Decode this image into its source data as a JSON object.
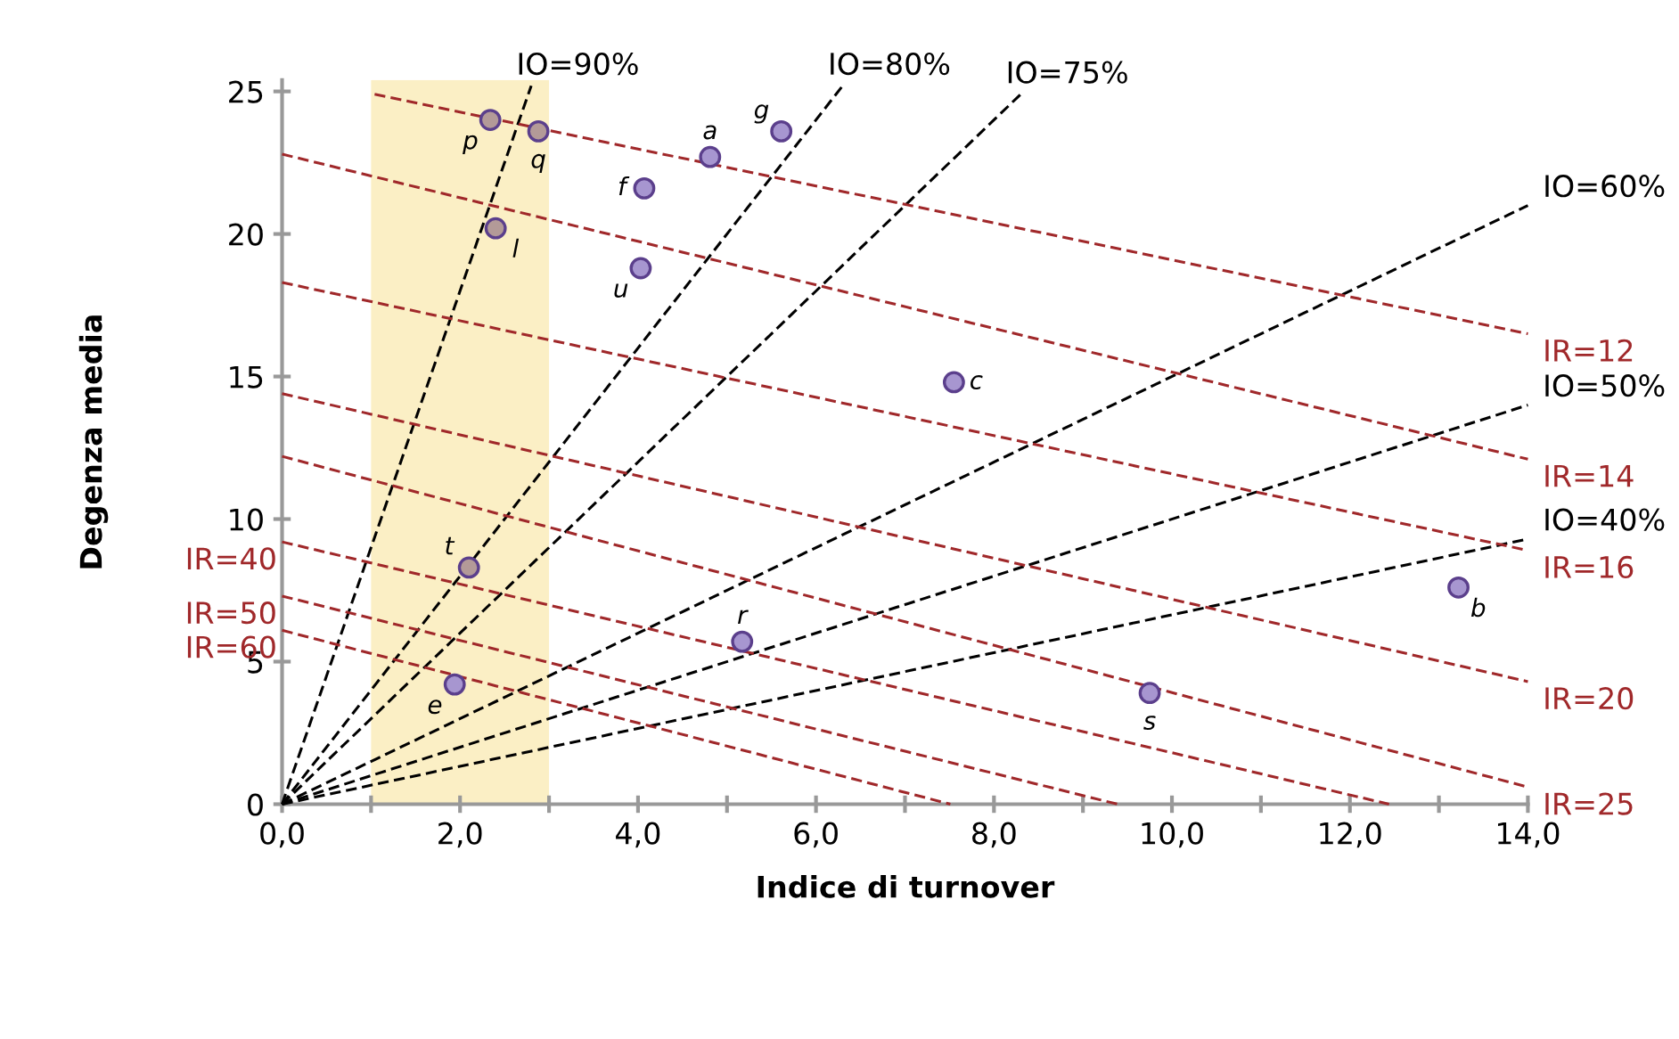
{
  "chart_data": {
    "type": "scatter",
    "xlabel": "Indice di turnover",
    "ylabel": "Degenza media",
    "xlim": [
      0,
      14
    ],
    "ylim": [
      0,
      25.4
    ],
    "xticks": [
      {
        "value": 0,
        "label": "0,0"
      },
      {
        "value": 1,
        "label": null
      },
      {
        "value": 2,
        "label": "2,0"
      },
      {
        "value": 3,
        "label": null
      },
      {
        "value": 4,
        "label": "4,0"
      },
      {
        "value": 5,
        "label": null
      },
      {
        "value": 6,
        "label": "6,0"
      },
      {
        "value": 7,
        "label": null
      },
      {
        "value": 8,
        "label": "8,0"
      },
      {
        "value": 9,
        "label": null
      },
      {
        "value": 10,
        "label": "10,0"
      },
      {
        "value": 11,
        "label": null
      },
      {
        "value": 12,
        "label": "12,0"
      },
      {
        "value": 13,
        "label": null
      },
      {
        "value": 14,
        "label": "14,0"
      }
    ],
    "yticks": [
      0,
      5,
      10,
      15,
      20,
      25
    ],
    "grid": false,
    "legend": false,
    "marker": "circle",
    "line_style": "dashed",
    "bands": [
      {
        "axis": "x",
        "from": 1,
        "to": 3,
        "color": "#fbefc5"
      }
    ],
    "series": [
      {
        "type": "scatter",
        "x": [
          2.34,
          2.88,
          2.4,
          4.07,
          4.81,
          5.61,
          4.03,
          7.55,
          5.17,
          1.94,
          9.75,
          13.22,
          2.1
        ],
        "values": [
          24.0,
          23.6,
          20.2,
          21.6,
          22.7,
          23.6,
          18.8,
          14.8,
          5.7,
          4.2,
          3.9,
          7.6,
          8.3
        ],
        "colors": [
          "#b39a98",
          "#b39a98",
          "#b39a98",
          "#a796d0",
          "#a796d0",
          "#a796d0",
          "#a796d0",
          "#a796d0",
          "#a796d0",
          "#a796d0",
          "#a796d0",
          "#a796d0",
          "#b39a98"
        ]
      },
      {
        "type": "line",
        "name": "IO=90%",
        "color": "#000000",
        "x": [
          0,
          2.8
        ],
        "values": [
          0,
          25.2
        ],
        "marker": "none"
      },
      {
        "type": "line",
        "name": "IO=80%",
        "color": "#000000",
        "x": [
          0,
          6.3
        ],
        "values": [
          0,
          25.2
        ],
        "marker": "none"
      },
      {
        "type": "line",
        "name": "IO=75%",
        "color": "#000000",
        "x": [
          0,
          8.3
        ],
        "values": [
          0,
          24.9
        ],
        "marker": "none"
      },
      {
        "type": "line",
        "name": "IO=60%",
        "color": "#000000",
        "x": [
          0,
          14
        ],
        "values": [
          0,
          21.0
        ],
        "marker": "none"
      },
      {
        "type": "line",
        "name": "IO=50%",
        "color": "#000000",
        "x": [
          0,
          14
        ],
        "values": [
          0,
          14.0
        ],
        "marker": "none"
      },
      {
        "type": "line",
        "name": "IO=40%",
        "color": "#000000",
        "x": [
          0,
          14
        ],
        "values": [
          0,
          9.3
        ],
        "marker": "none"
      },
      {
        "type": "line",
        "name": "IR=12",
        "color": "#a0282a",
        "x": [
          1.04,
          14
        ],
        "values": [
          24.9,
          16.5
        ],
        "marker": "none"
      },
      {
        "type": "line",
        "name": "IR=14",
        "color": "#a0282a",
        "x": [
          0,
          14
        ],
        "values": [
          22.8,
          12.1
        ],
        "marker": "none"
      },
      {
        "type": "line",
        "name": "IR=16",
        "color": "#a0282a",
        "x": [
          0,
          14
        ],
        "values": [
          18.3,
          8.9
        ],
        "marker": "none"
      },
      {
        "type": "line",
        "name": "IR=20",
        "color": "#a0282a",
        "x": [
          0,
          14
        ],
        "values": [
          14.4,
          4.3
        ],
        "marker": "none"
      },
      {
        "type": "line",
        "name": "IR=25",
        "color": "#a0282a",
        "x": [
          0,
          14
        ],
        "values": [
          12.2,
          0.6
        ],
        "marker": "none"
      },
      {
        "type": "line",
        "name": "IR=40",
        "color": "#a0282a",
        "x": [
          0,
          12.44
        ],
        "values": [
          9.2,
          0
        ],
        "marker": "none"
      },
      {
        "type": "line",
        "name": "IR=50",
        "color": "#a0282a",
        "x": [
          0,
          9.39
        ],
        "values": [
          7.3,
          0
        ],
        "marker": "none"
      },
      {
        "type": "line",
        "name": "IR=60",
        "color": "#a0282a",
        "x": [
          0,
          7.51
        ],
        "values": [
          6.1,
          0
        ],
        "marker": "none"
      }
    ],
    "annotations": [
      {
        "text": "p",
        "x": 2.34,
        "y": 24.0
      },
      {
        "text": "q",
        "x": 2.88,
        "y": 23.6
      },
      {
        "text": "l",
        "x": 2.4,
        "y": 20.2
      },
      {
        "text": "f",
        "x": 4.07,
        "y": 21.6
      },
      {
        "text": "a",
        "x": 4.81,
        "y": 22.7
      },
      {
        "text": "g",
        "x": 5.61,
        "y": 23.6
      },
      {
        "text": "u",
        "x": 4.03,
        "y": 18.8
      },
      {
        "text": "c",
        "x": 7.55,
        "y": 14.8
      },
      {
        "text": "r",
        "x": 5.17,
        "y": 5.7
      },
      {
        "text": "e",
        "x": 1.94,
        "y": 4.2
      },
      {
        "text": "s",
        "x": 9.75,
        "y": 3.9
      },
      {
        "text": "b",
        "x": 13.22,
        "y": 7.6
      },
      {
        "text": "t",
        "x": 2.1,
        "y": 8.3
      }
    ]
  }
}
